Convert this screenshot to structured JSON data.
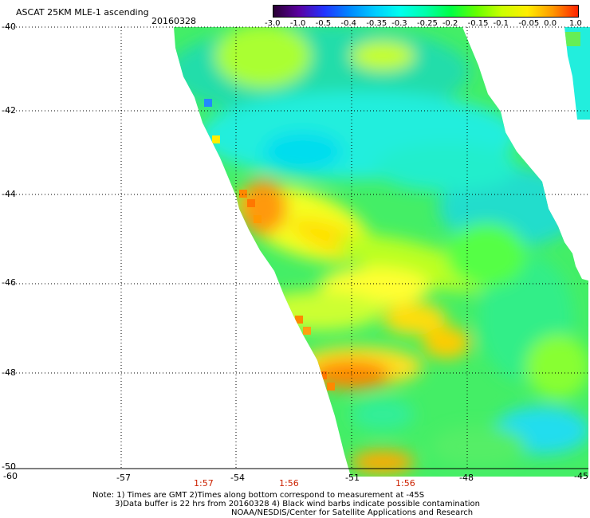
{
  "header": {
    "title": "ASCAT 25KM MLE-1 ascending",
    "date": "20160328"
  },
  "colorbar": {
    "labels": [
      "-3.0",
      "-1.0",
      "-0.5",
      "-0.4",
      "-0.35",
      "-0.3",
      "-0.25",
      "-0.2",
      "-0.15",
      "-0.1",
      "-0.05",
      "0.0",
      "1.0"
    ],
    "colors": [
      "#2a0033",
      "#5a00a0",
      "#2233ff",
      "#0088ff",
      "#00ccff",
      "#00ffee",
      "#00ffaa",
      "#00ff44",
      "#66ff00",
      "#ccff00",
      "#ffee00",
      "#ff9900",
      "#ff2200"
    ]
  },
  "map": {
    "lat_labels": [
      "-40",
      "-42",
      "-44",
      "-46",
      "-48",
      "-50"
    ],
    "lon_labels": [
      "-60",
      "-57",
      "-54",
      "-51",
      "-48",
      "-45"
    ],
    "time_labels": [
      "1:57",
      "1:56",
      "1:56"
    ]
  },
  "notes": {
    "line1": "Note: 1) Times are GMT 2)Times along bottom correspond to measurement at -45S",
    "line2": "3)Data buffer is 22 hrs from 20160328 4) Black wind barbs indicate possible contamination",
    "line3": "NOAA/NESDIS/Center for Satellite Applications and Research"
  }
}
